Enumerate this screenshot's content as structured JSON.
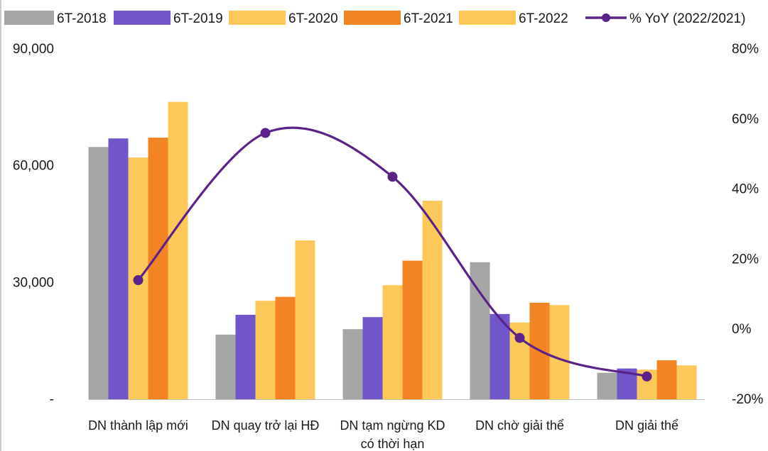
{
  "chart_data": {
    "type": "bar",
    "categories": [
      [
        "DN thành lập mới"
      ],
      [
        "DN quay trở lại HĐ"
      ],
      [
        "DN tạm ngừng KD",
        "có thời hạn"
      ],
      [
        "DN chờ giải thể"
      ],
      [
        "DN giải thể"
      ]
    ],
    "series": [
      {
        "name": "6T-2018",
        "color": "#a6a6a6",
        "values": [
          64800,
          16600,
          18000,
          35200,
          6800
        ]
      },
      {
        "name": "6T-2019",
        "color": "#7056c8",
        "values": [
          67000,
          21700,
          21100,
          21900,
          7900
        ]
      },
      {
        "name": "6T-2020",
        "color": "#fbc959",
        "values": [
          62100,
          25300,
          29300,
          19700,
          7600
        ]
      },
      {
        "name": "6T-2021",
        "color": "#f28424",
        "values": [
          67200,
          26300,
          35600,
          24800,
          10000
        ]
      },
      {
        "name": "6T-2022",
        "color": "#fdc95a",
        "values": [
          76400,
          40800,
          51000,
          24200,
          8700
        ]
      }
    ],
    "line_series": {
      "name": "% YoY (2022/2021)",
      "color": "#5b2289",
      "axis": "right",
      "values": [
        14,
        56,
        43.5,
        -2.5,
        -13.5
      ]
    },
    "left_axis": {
      "ylim": [
        0,
        90000
      ],
      "ticks": [
        "-",
        "30,000",
        "60,000",
        "90,000"
      ],
      "tick_values": [
        0,
        30000,
        60000,
        90000
      ]
    },
    "right_axis": {
      "ylim": [
        -20,
        80
      ],
      "ticks": [
        "-20%",
        "0%",
        "20%",
        "40%",
        "60%",
        "80%"
      ],
      "tick_values": [
        -20,
        0,
        20,
        40,
        60,
        80
      ]
    },
    "legend_position": "top",
    "grid": false
  }
}
